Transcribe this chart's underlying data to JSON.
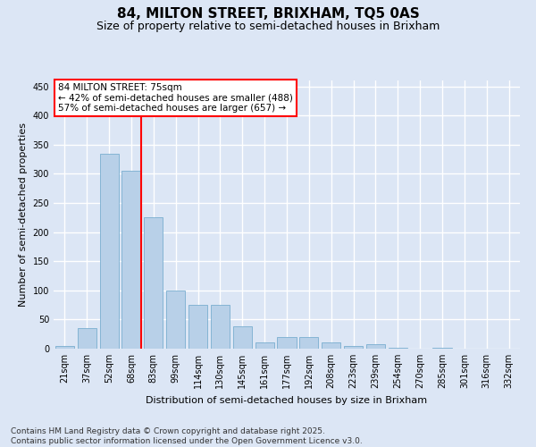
{
  "title": "84, MILTON STREET, BRIXHAM, TQ5 0AS",
  "subtitle": "Size of property relative to semi-detached houses in Brixham",
  "xlabel": "Distribution of semi-detached houses by size in Brixham",
  "ylabel": "Number of semi-detached properties",
  "categories": [
    "21sqm",
    "37sqm",
    "52sqm",
    "68sqm",
    "83sqm",
    "99sqm",
    "114sqm",
    "130sqm",
    "145sqm",
    "161sqm",
    "177sqm",
    "192sqm",
    "208sqm",
    "223sqm",
    "239sqm",
    "254sqm",
    "270sqm",
    "285sqm",
    "301sqm",
    "316sqm",
    "332sqm"
  ],
  "values": [
    5,
    35,
    335,
    305,
    225,
    100,
    75,
    75,
    38,
    10,
    20,
    20,
    10,
    5,
    7,
    2,
    0,
    2,
    0,
    0,
    0
  ],
  "bar_color": "#b8d0e8",
  "bar_edge_color": "#7aaed0",
  "vline_x": 3,
  "vline_color": "red",
  "annotation_text": "84 MILTON STREET: 75sqm\n← 42% of semi-detached houses are smaller (488)\n57% of semi-detached houses are larger (657) →",
  "annotation_box_color": "white",
  "annotation_box_edge_color": "red",
  "ylim": [
    0,
    460
  ],
  "yticks": [
    0,
    50,
    100,
    150,
    200,
    250,
    300,
    350,
    400,
    450
  ],
  "footnote": "Contains HM Land Registry data © Crown copyright and database right 2025.\nContains public sector information licensed under the Open Government Licence v3.0.",
  "bg_color": "#dce6f5",
  "grid_color": "white",
  "title_fontsize": 11,
  "subtitle_fontsize": 9,
  "axis_label_fontsize": 8,
  "tick_fontsize": 7,
  "annotation_fontsize": 7.5,
  "footnote_fontsize": 6.5
}
